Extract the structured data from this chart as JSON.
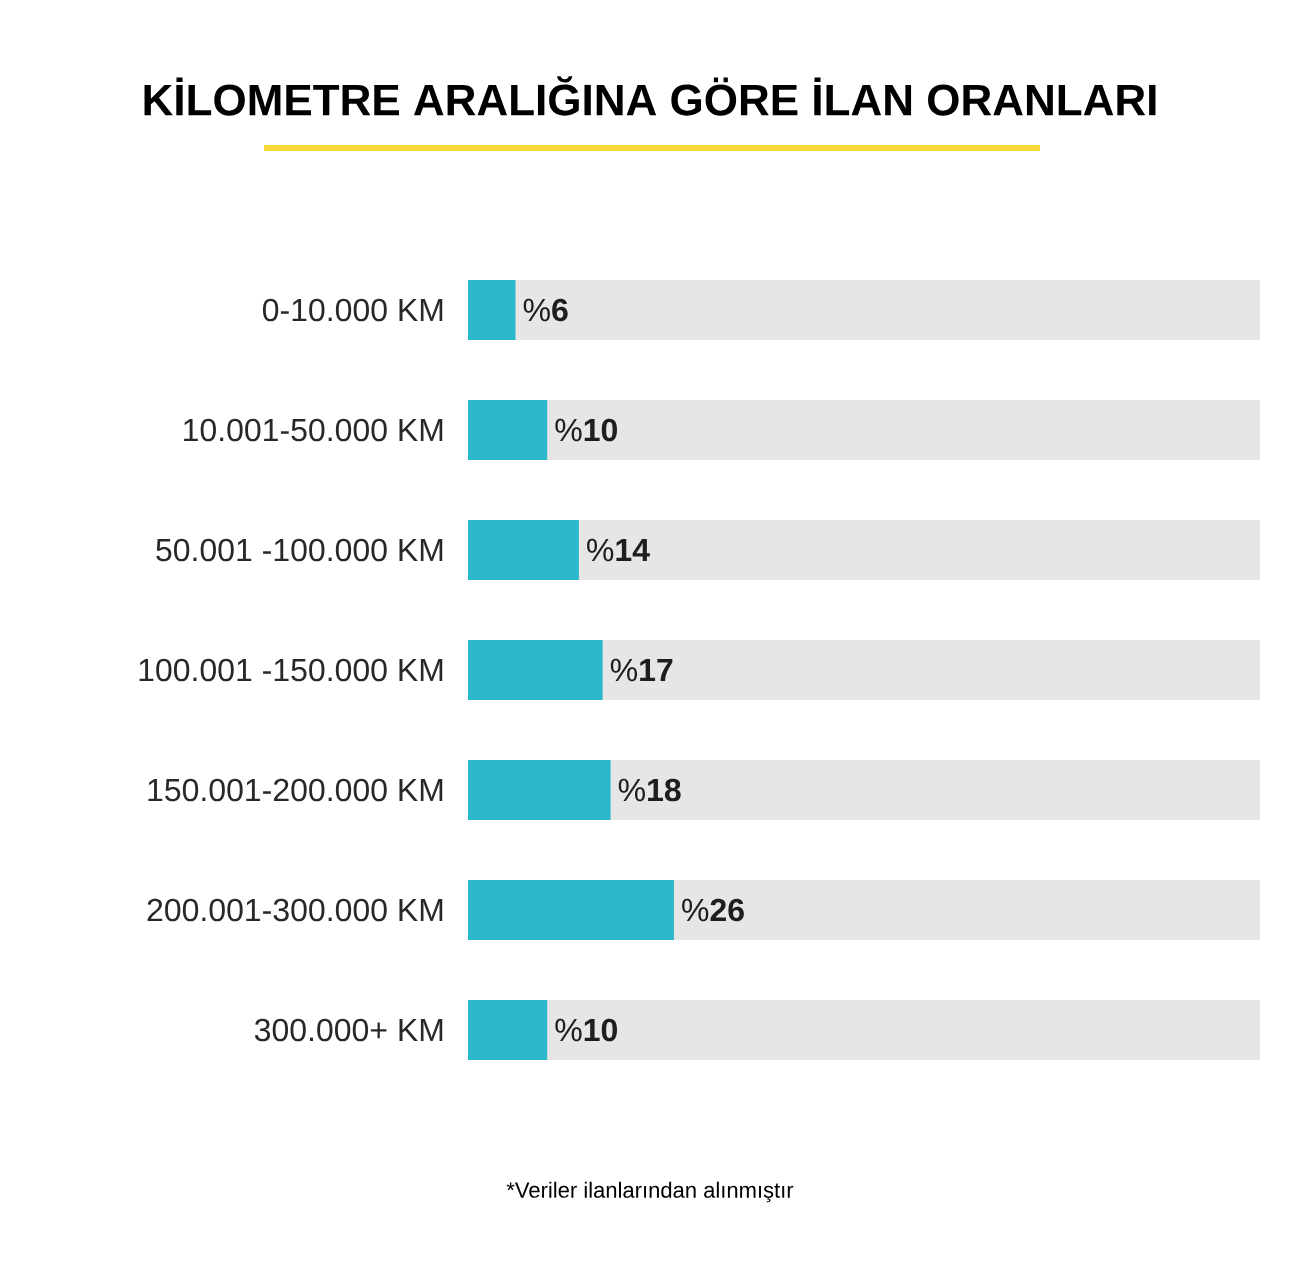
{
  "chart_data": {
    "type": "bar",
    "orientation": "horizontal",
    "title": "KİLOMETRE ARALIĞINA GÖRE İLAN ORANLARI",
    "categories": [
      "0-10.000 KM",
      "10.001-50.000 KM",
      "50.001 -100.000 KM",
      "100.001 -150.000 KM",
      "150.001-200.000 KM",
      "200.001-300.000 KM",
      "300.000+ KM"
    ],
    "values": [
      6,
      10,
      14,
      17,
      18,
      26,
      10
    ],
    "value_labels": [
      "%**6**",
      "%**10**",
      "%**14**",
      "%**17**",
      "%**18**",
      "%**26**",
      "%**10**"
    ],
    "color": "#2bb8cc",
    "xlim": [
      0,
      100
    ],
    "tick_labels": "y",
    "annotations": [
      "*Veriler ilanlarından alınmıştır"
    ]
  }
}
